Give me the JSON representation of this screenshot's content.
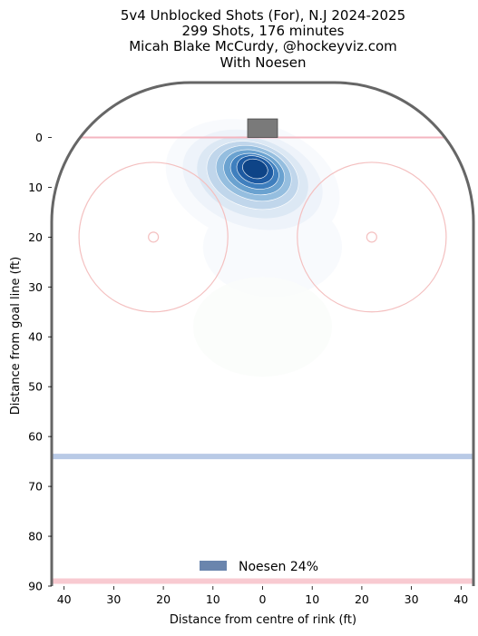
{
  "chart_data": {
    "type": "heatmap",
    "title_lines": [
      "5v4 Unblocked Shots (For), N.J 2024-2025",
      "299 Shots, 176 minutes",
      "Micah Blake McCurdy, @hockeyviz.com",
      "With Noesen"
    ],
    "xlabel": "Distance from centre of rink (ft)",
    "ylabel": "Distance from goal line (ft)",
    "xlim": [
      -42.5,
      42.5
    ],
    "ylim": [
      -11,
      90
    ],
    "y_inverted": true,
    "x_ticks": [
      -40,
      -30,
      -20,
      -10,
      0,
      10,
      20,
      30,
      40
    ],
    "x_tick_labels": [
      "40",
      "30",
      "20",
      "10",
      "0",
      "10",
      "20",
      "30",
      "40"
    ],
    "y_ticks": [
      0,
      10,
      20,
      30,
      40,
      50,
      60,
      70,
      80,
      90
    ],
    "y_tick_labels": [
      "0",
      "10",
      "20",
      "30",
      "40",
      "50",
      "60",
      "70",
      "80",
      "90"
    ],
    "legend": {
      "placement": "bottom-center",
      "label": "Noesen 24%",
      "color": "#6a85ad"
    },
    "density_peak": {
      "x": -1.5,
      "y": 6.5
    },
    "density_levels": [
      {
        "x": -2,
        "y": 9,
        "rx": 18,
        "ry": 12,
        "color": "#f7f9fd",
        "opacity": 0.9
      },
      {
        "x": -2,
        "y": 8.5,
        "rx": 14.5,
        "ry": 9.5,
        "color": "#eef3fa",
        "opacity": 1
      },
      {
        "x": -2,
        "y": 8,
        "rx": 11.5,
        "ry": 7.8,
        "color": "#dce8f4",
        "opacity": 1
      },
      {
        "x": -2,
        "y": 7.6,
        "rx": 9.5,
        "ry": 6.5,
        "color": "#c0d6eb",
        "opacity": 1
      },
      {
        "x": -1.8,
        "y": 7.2,
        "rx": 7.8,
        "ry": 5.3,
        "color": "#95bedf",
        "opacity": 1
      },
      {
        "x": -1.7,
        "y": 7,
        "rx": 6.3,
        "ry": 4.3,
        "color": "#6aa2d0",
        "opacity": 1
      },
      {
        "x": -1.6,
        "y": 6.8,
        "rx": 5,
        "ry": 3.4,
        "color": "#3f7fbe",
        "opacity": 1
      },
      {
        "x": -1.5,
        "y": 6.5,
        "rx": 3.8,
        "ry": 2.7,
        "color": "#1d5aa2",
        "opacity": 1
      },
      {
        "x": -1.5,
        "y": 6.3,
        "rx": 2.6,
        "ry": 1.9,
        "color": "#0e4487",
        "opacity": 1
      }
    ],
    "faint_regions": [
      {
        "x": 2,
        "y": 22,
        "rx": 14,
        "ry": 10,
        "color": "#f5f8fc",
        "opacity": 0.7
      },
      {
        "x": 0,
        "y": 38,
        "rx": 14,
        "ry": 10,
        "color": "#fafcfa",
        "opacity": 0.8
      }
    ],
    "rink": {
      "board_color": "#666666",
      "goal_line_color": "#f4b6c0",
      "blue_line_color": "#a8bde0",
      "center_line_color": "#f4a6b2",
      "circle_color": "#f4c0c0",
      "net_color": "#7a7a7a",
      "goal_line_y": 0,
      "blue_line_y": 64,
      "center_line_y": 89,
      "faceoff_circles": [
        {
          "x": -22,
          "y": 20,
          "r": 15
        },
        {
          "x": 22,
          "y": 20,
          "r": 15
        }
      ]
    },
    "grid": false
  }
}
